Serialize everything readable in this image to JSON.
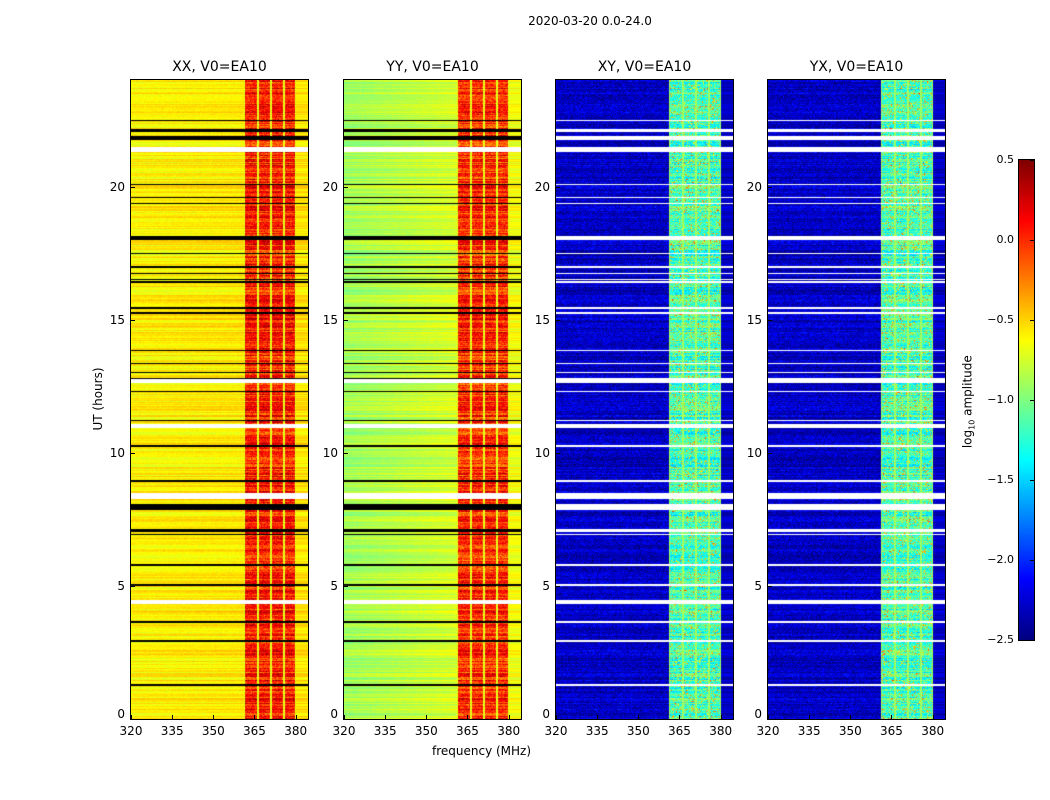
{
  "chart_data": {
    "type": "heatmap",
    "title": "2020-03-20 0.0-24.0",
    "xlabel": "frequency (MHz)",
    "ylabel": "UT (hours)",
    "xlim": [
      320,
      384.5
    ],
    "ylim": [
      0,
      24
    ],
    "xticks": [
      "320",
      "335",
      "350",
      "365",
      "380"
    ],
    "xtick_values": [
      320,
      335,
      350,
      365,
      380
    ],
    "yticks": [
      "0",
      "5",
      "10",
      "15",
      "20"
    ],
    "ytick_values": [
      0,
      5,
      10,
      15,
      20
    ],
    "colorbar": {
      "label_prefix": "log",
      "label_sub": "10",
      "label_suffix": " amplitude",
      "range": [
        -2.5,
        0.5
      ],
      "ticks": [
        "0.5",
        "0.0",
        "−0.5",
        "−1.0",
        "−1.5",
        "−2.0",
        "−2.5"
      ],
      "tick_values": [
        0.5,
        0,
        -0.5,
        -1,
        -1.5,
        -2,
        -2.5
      ],
      "colormap": "jet"
    },
    "rfi_band_MHz": [
      361,
      380
    ],
    "sub_bands_MHz": [
      [
        361,
        366
      ],
      [
        366,
        371
      ],
      [
        371,
        375.6
      ],
      [
        375.6,
        380
      ]
    ],
    "flagged_gaps_UT": [
      [
        21.3,
        21.5
      ],
      [
        12.65,
        12.8
      ],
      [
        10.95,
        11.1
      ],
      [
        8.3,
        8.5
      ],
      [
        4.35,
        4.5
      ]
    ],
    "panels": [
      {
        "title": "XX, V0=EA10",
        "baseline": -0.6,
        "baseline_right": -0.55,
        "band_level": 0.05
      },
      {
        "title": "YY, V0=EA10",
        "baseline": -0.9,
        "baseline_right": -0.65,
        "band_level": 0.0
      },
      {
        "title": "XY, V0=EA10",
        "baseline": -2.3,
        "baseline_right": -2.3,
        "band_level": -1.2
      },
      {
        "title": "YX, V0=EA10",
        "baseline": -2.3,
        "baseline_right": -2.3,
        "band_level": -1.2
      }
    ]
  }
}
